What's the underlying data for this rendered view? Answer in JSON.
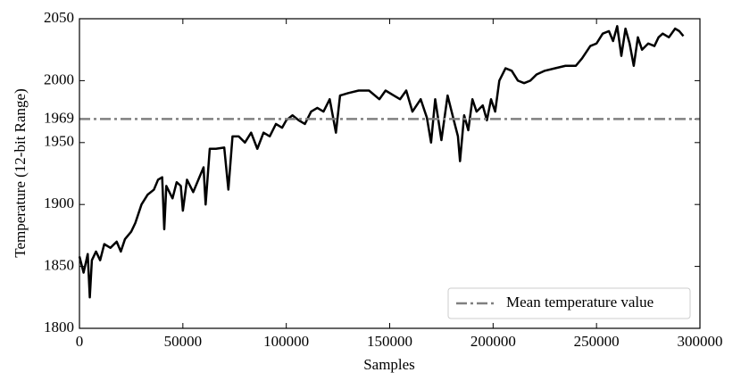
{
  "chart_data": {
    "type": "line",
    "xlabel": "Samples",
    "ylabel": "Temperature (12-bit Range)",
    "xlim": [
      0,
      300000
    ],
    "ylim": [
      1800,
      2050
    ],
    "xticks": [
      0,
      50000,
      100000,
      150000,
      200000,
      250000,
      300000
    ],
    "yticks": [
      1800,
      1850,
      1900,
      1950,
      1969,
      2000,
      2050
    ],
    "color": "#000000",
    "x": [
      0,
      2000,
      4000,
      5000,
      6000,
      8000,
      10000,
      12000,
      15000,
      18000,
      20000,
      22000,
      25000,
      27000,
      30000,
      33000,
      36000,
      38000,
      40000,
      41000,
      42000,
      45000,
      47000,
      49000,
      50000,
      52000,
      55000,
      58000,
      60000,
      61000,
      63000,
      66000,
      70000,
      72000,
      74000,
      77000,
      80000,
      83000,
      86000,
      89000,
      92000,
      95000,
      98000,
      100000,
      103000,
      106000,
      109000,
      112000,
      115000,
      118000,
      121000,
      124000,
      126000,
      130000,
      135000,
      140000,
      145000,
      148000,
      152000,
      155000,
      158000,
      161000,
      165000,
      168000,
      170000,
      172000,
      175000,
      178000,
      181000,
      183000,
      184000,
      186000,
      188000,
      190000,
      192000,
      195000,
      197000,
      199000,
      201000,
      203000,
      206000,
      209000,
      212000,
      215000,
      218000,
      221000,
      225000,
      230000,
      235000,
      240000,
      243000,
      247000,
      250000,
      253000,
      256000,
      258000,
      260000,
      262000,
      264000,
      266000,
      268000,
      270000,
      272000,
      275000,
      278000,
      280000,
      282000,
      285000,
      288000,
      290000,
      292000
    ],
    "values": [
      1858,
      1845,
      1860,
      1825,
      1855,
      1862,
      1855,
      1868,
      1865,
      1870,
      1862,
      1872,
      1878,
      1885,
      1900,
      1908,
      1912,
      1920,
      1922,
      1880,
      1915,
      1905,
      1918,
      1915,
      1895,
      1920,
      1910,
      1922,
      1930,
      1900,
      1945,
      1945,
      1946,
      1912,
      1955,
      1955,
      1950,
      1958,
      1945,
      1958,
      1955,
      1965,
      1962,
      1968,
      1972,
      1968,
      1965,
      1975,
      1978,
      1975,
      1985,
      1958,
      1988,
      1990,
      1992,
      1992,
      1985,
      1992,
      1988,
      1985,
      1992,
      1975,
      1985,
      1970,
      1950,
      1985,
      1952,
      1988,
      1968,
      1955,
      1935,
      1972,
      1960,
      1985,
      1975,
      1980,
      1968,
      1985,
      1975,
      2000,
      2010,
      2008,
      2000,
      1998,
      2000,
      2005,
      2008,
      2010,
      2012,
      2012,
      2018,
      2028,
      2030,
      2038,
      2040,
      2032,
      2044,
      2020,
      2042,
      2030,
      2012,
      2035,
      2025,
      2030,
      2028,
      2035,
      2038,
      2035,
      2042,
      2040,
      2036
    ],
    "hlines": [
      {
        "name": "Mean temperature value",
        "value": 1969,
        "color": "#808080"
      }
    ],
    "legend": "lower right"
  }
}
